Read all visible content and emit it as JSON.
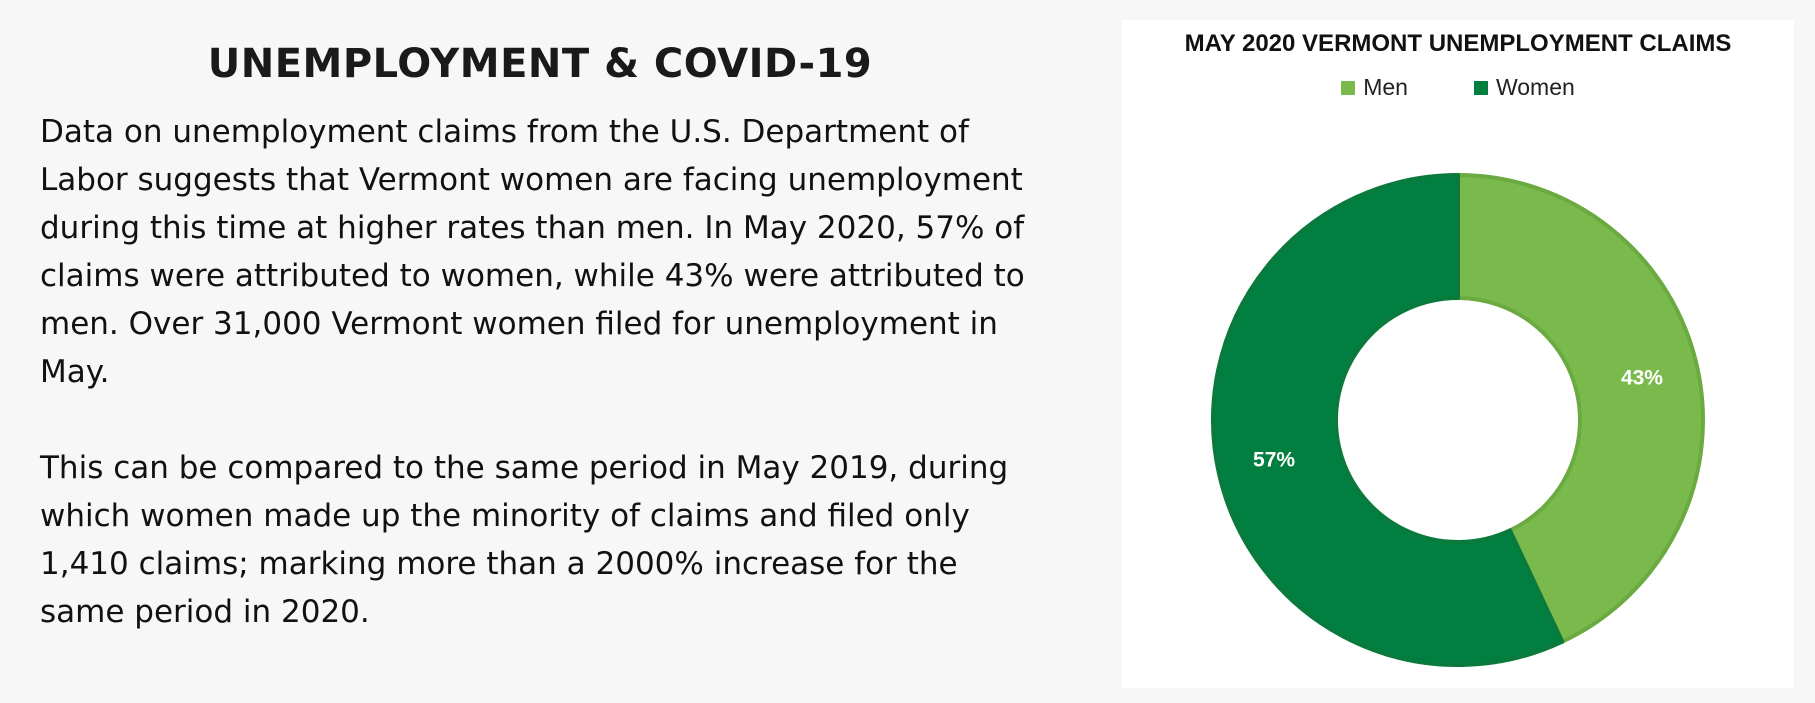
{
  "page": {
    "heading": "UNEMPLOYMENT & COVID-19",
    "paragraph_1": "Data on unemployment claims from the U.S. Department of Labor suggests that Vermont women are facing unemployment during this time at higher rates than men. In May 2020, 57% of claims were attributed to women, while 43% were attributed to men. Over 31,000 Vermont women filed for unemployment in May.",
    "paragraph_2": "This can be compared to the same period in May 2019, during which women made up the minority of claims and filed only 1,410 claims; marking more than a 2000% increase for the same period in 2020."
  },
  "chart_data": {
    "type": "pie",
    "variant": "donut",
    "title": "MAY 2020 VERMONT UNEMPLOYMENT CLAIMS",
    "legend_position": "top",
    "series": [
      {
        "name": "Men",
        "value": 43,
        "label": "43%",
        "color": "#7aba4d",
        "edge_color": "#6aaa40"
      },
      {
        "name": "Women",
        "value": 57,
        "label": "57%",
        "color": "#017f41",
        "edge_color": "#0a7a3c"
      }
    ]
  }
}
